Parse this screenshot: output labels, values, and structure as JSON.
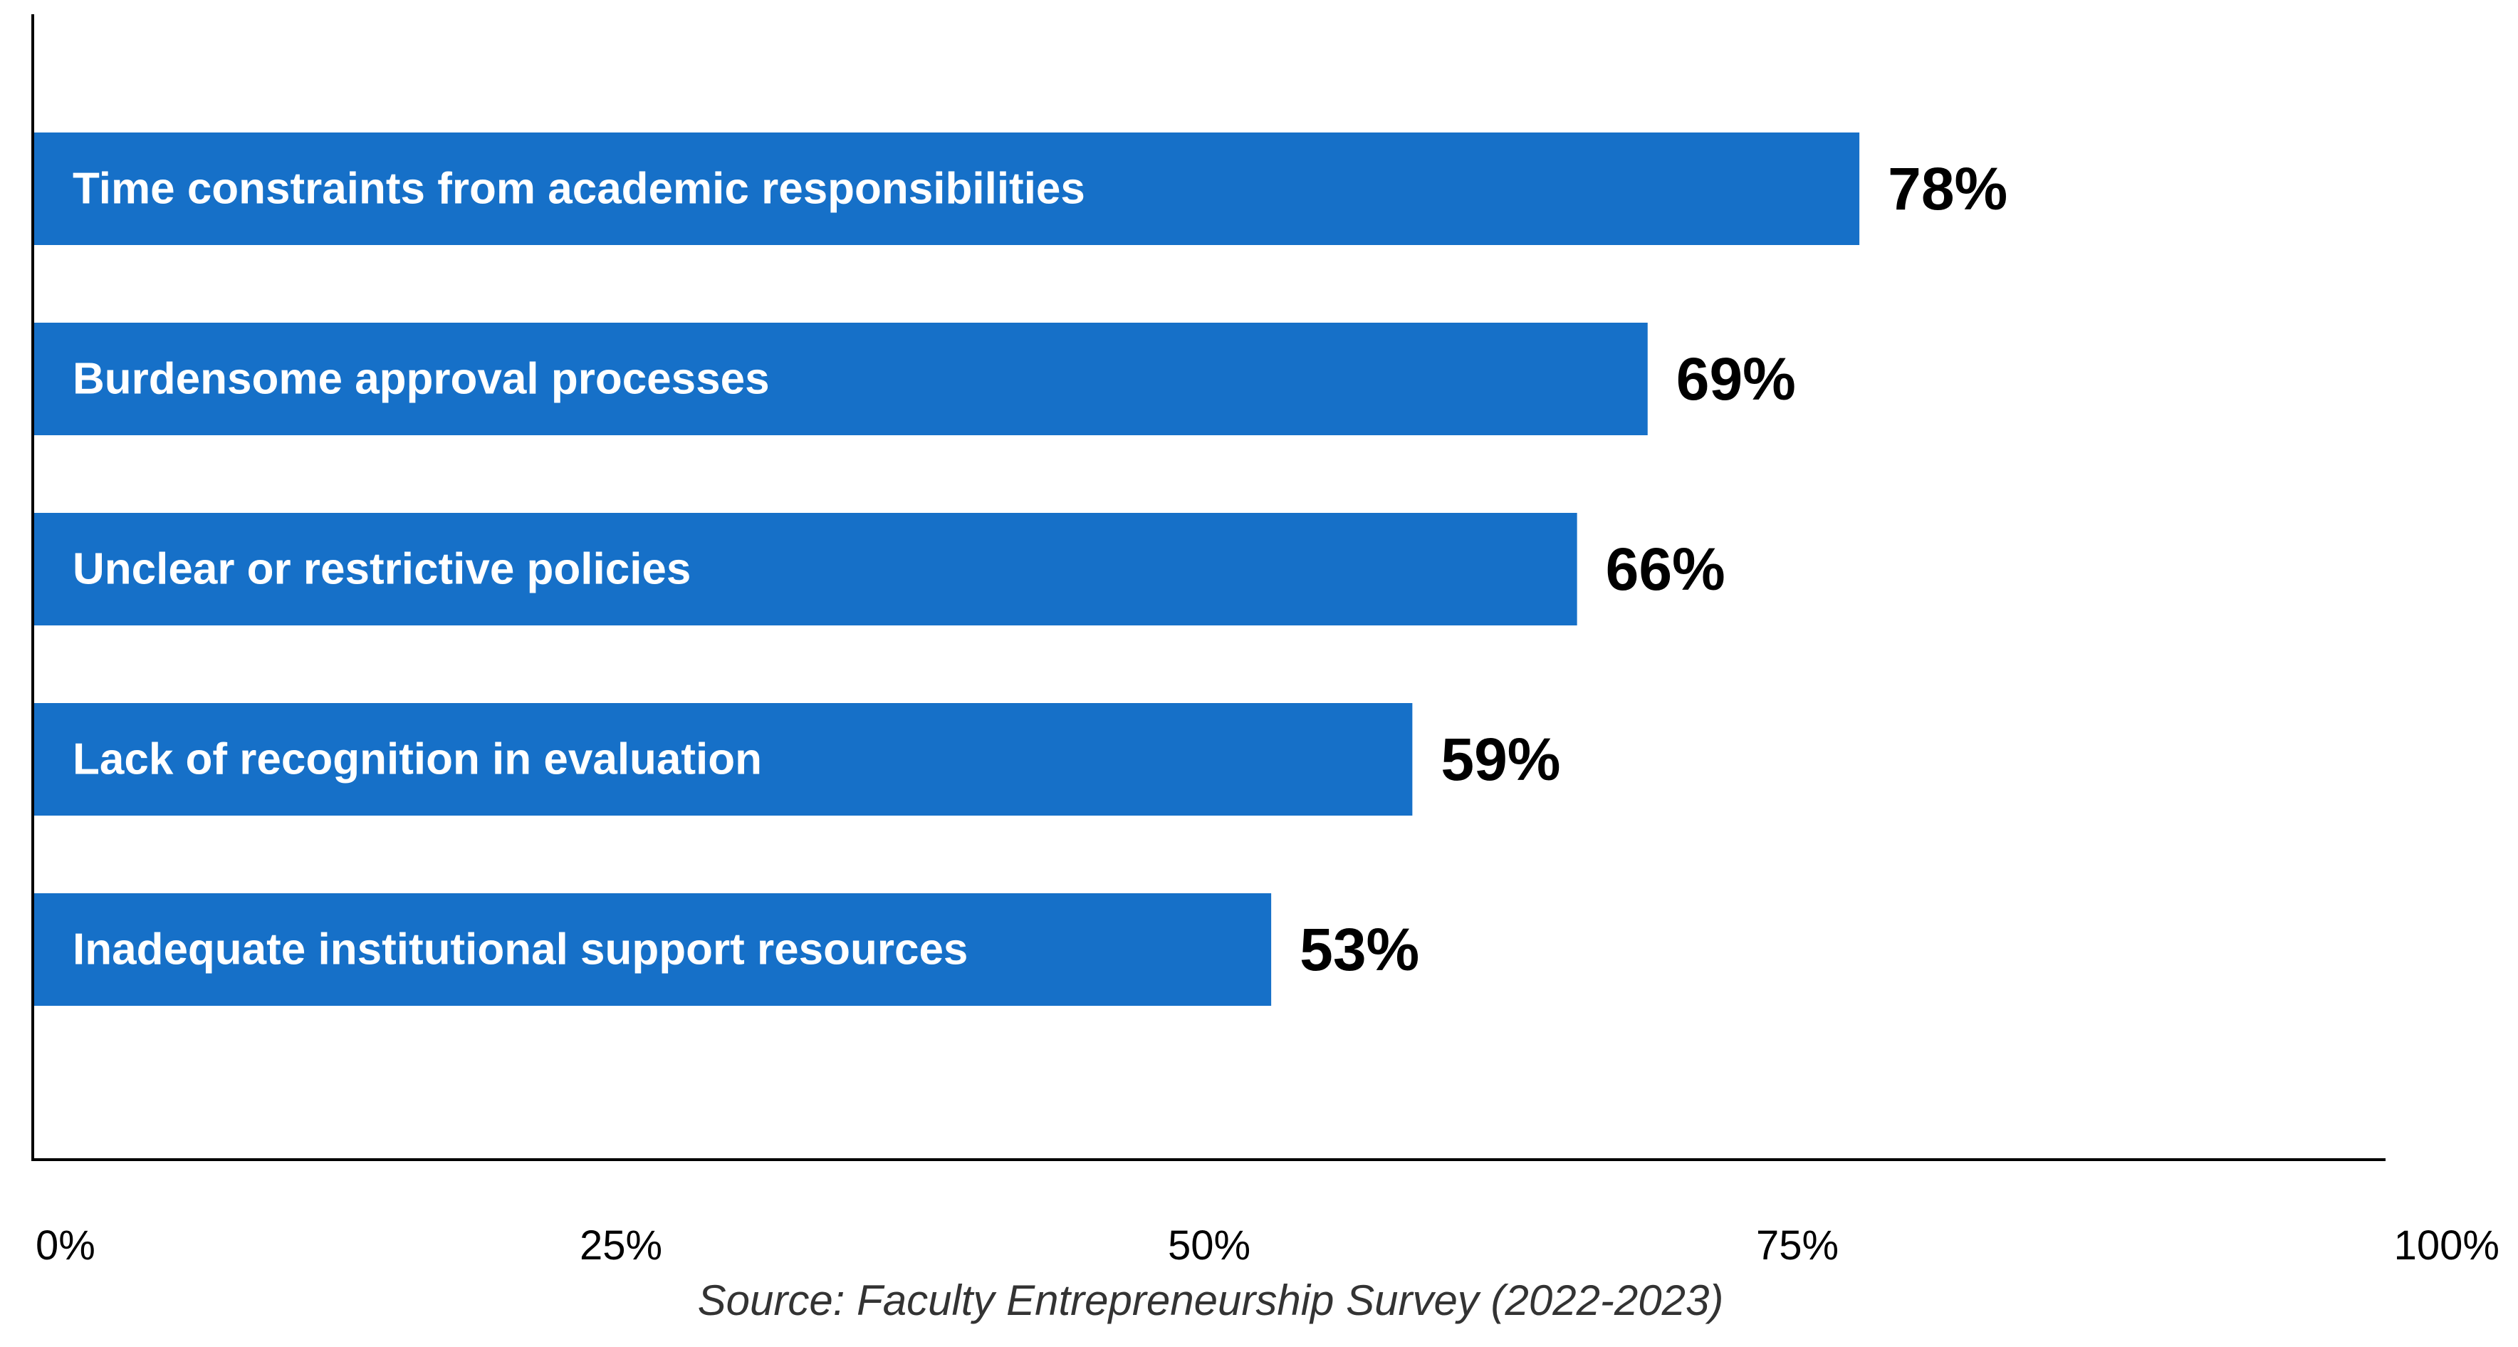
{
  "chart_data": {
    "type": "bar",
    "orientation": "horizontal",
    "categories": [
      "Time constraints from academic responsibilities",
      "Burdensome approval processes",
      "Unclear or restrictive policies",
      "Lack of recognition in evaluation",
      "Inadequate institutional support resources"
    ],
    "values": [
      78,
      69,
      66,
      59,
      53
    ],
    "value_labels": [
      "78%",
      "69%",
      "66%",
      "59%",
      "53%"
    ],
    "xlim": [
      0,
      100
    ],
    "x_ticks": [
      0,
      25,
      50,
      75,
      100
    ],
    "x_tick_labels": [
      "0%",
      "25%",
      "50%",
      "75%",
      "100%"
    ],
    "grid": false,
    "source": "Source: Faculty Entrepreneurship Survey (2022-2023)",
    "colors": {
      "bar": "#1670C8",
      "bar_text": "#FFFFFF",
      "value_text": "#000000",
      "axis": "#000000",
      "source_text": "#333333"
    }
  }
}
